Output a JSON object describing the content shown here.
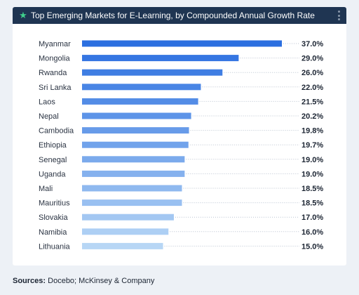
{
  "header": {
    "title": "Top Emerging Markets for E-Learning, by Compounded Annual Growth Rate",
    "star_icon": "star-icon",
    "menu_icon": "kebab-menu-icon"
  },
  "footer": {
    "sources_label": "Sources:",
    "sources_text": " Docebo; McKinsey & Company"
  },
  "colors": {
    "header_bg": "#1f3552",
    "bar_dark": "#2b6fe0",
    "bar_light": "#b7d6f5",
    "page_bg": "#edf1f6"
  },
  "chart_data": {
    "type": "bar",
    "orientation": "horizontal",
    "title": "Top Emerging Markets for E-Learning, by Compounded Annual Growth Rate",
    "xlabel": "",
    "ylabel": "",
    "unit": "%",
    "categories": [
      "Myanmar",
      "Mongolia",
      "Rwanda",
      "Sri Lanka",
      "Laos",
      "Nepal",
      "Cambodia",
      "Ethiopia",
      "Senegal",
      "Uganda",
      "Mali",
      "Mauritius",
      "Slovakia",
      "Namibia",
      "Lithuania"
    ],
    "values": [
      37.0,
      29.0,
      26.0,
      22.0,
      21.5,
      20.2,
      19.8,
      19.7,
      19.0,
      19.0,
      18.5,
      18.5,
      17.0,
      16.0,
      15.0
    ],
    "value_labels": [
      "37.0%",
      "29.0%",
      "26.0%",
      "22.0%",
      "21.5%",
      "20.2%",
      "19.8%",
      "19.7%",
      "19.0%",
      "19.0%",
      "18.5%",
      "18.5%",
      "17.0%",
      "16.0%",
      "15.0%"
    ],
    "xlim": [
      0,
      37.0
    ],
    "grid": false,
    "legend": "none"
  }
}
